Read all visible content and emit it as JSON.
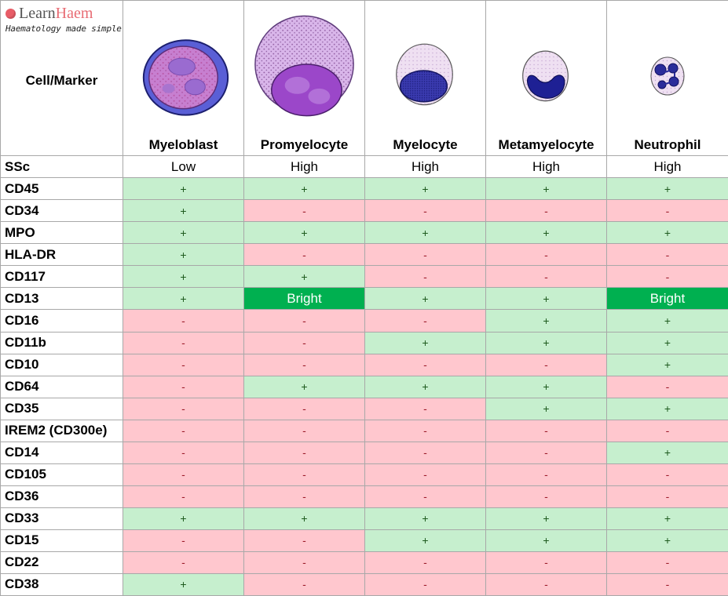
{
  "logo": {
    "learn": "Learn",
    "haem": "Haem",
    "tagline": "Haematology made simple",
    "dot_color": "#e85d67"
  },
  "corner_label": "Cell/Marker",
  "cells": [
    "Myeloblast",
    "Promyelocyte",
    "Myelocyte",
    "Metamyelocyte",
    "Neutrophil"
  ],
  "ssc": {
    "label": "SSc",
    "values": [
      "Low",
      "High",
      "High",
      "High",
      "High"
    ]
  },
  "markers": [
    {
      "name": "CD45",
      "values": [
        "+",
        "+",
        "+",
        "+",
        "+"
      ]
    },
    {
      "name": "CD34",
      "values": [
        "+",
        "-",
        "-",
        "-",
        "-"
      ]
    },
    {
      "name": "MPO",
      "values": [
        "+",
        "+",
        "+",
        "+",
        "+"
      ]
    },
    {
      "name": "HLA-DR",
      "values": [
        "+",
        "-",
        "-",
        "-",
        "-"
      ]
    },
    {
      "name": "CD117",
      "values": [
        "+",
        "+",
        "-",
        "-",
        "-"
      ]
    },
    {
      "name": "CD13",
      "values": [
        "+",
        "Bright",
        "+",
        "+",
        "Bright"
      ]
    },
    {
      "name": "CD16",
      "values": [
        "-",
        "-",
        "-",
        "+",
        "+"
      ]
    },
    {
      "name": "CD11b",
      "values": [
        "-",
        "-",
        "+",
        "+",
        "+"
      ]
    },
    {
      "name": "CD10",
      "values": [
        "-",
        "-",
        "-",
        "-",
        "+"
      ]
    },
    {
      "name": "CD64",
      "values": [
        "-",
        "+",
        "+",
        "+",
        "-"
      ]
    },
    {
      "name": "CD35",
      "values": [
        "-",
        "-",
        "-",
        "+",
        "+"
      ]
    },
    {
      "name": "IREM2 (CD300e)",
      "values": [
        "-",
        "-",
        "-",
        "-",
        "-"
      ]
    },
    {
      "name": "CD14",
      "values": [
        "-",
        "-",
        "-",
        "-",
        "+"
      ]
    },
    {
      "name": "CD105",
      "values": [
        "-",
        "-",
        "-",
        "-",
        "-"
      ]
    },
    {
      "name": "CD36",
      "values": [
        "-",
        "-",
        "-",
        "-",
        "-"
      ]
    },
    {
      "name": "CD33",
      "values": [
        "+",
        "+",
        "+",
        "+",
        "+"
      ]
    },
    {
      "name": "CD15",
      "values": [
        "-",
        "-",
        "+",
        "+",
        "+"
      ]
    },
    {
      "name": "CD22",
      "values": [
        "-",
        "-",
        "-",
        "-",
        "-"
      ]
    },
    {
      "name": "CD38",
      "values": [
        "+",
        "-",
        "-",
        "-",
        "-"
      ]
    }
  ],
  "colors": {
    "positive_bg": "#c6efce",
    "negative_bg": "#ffc7ce",
    "bright_bg": "#00b050"
  }
}
